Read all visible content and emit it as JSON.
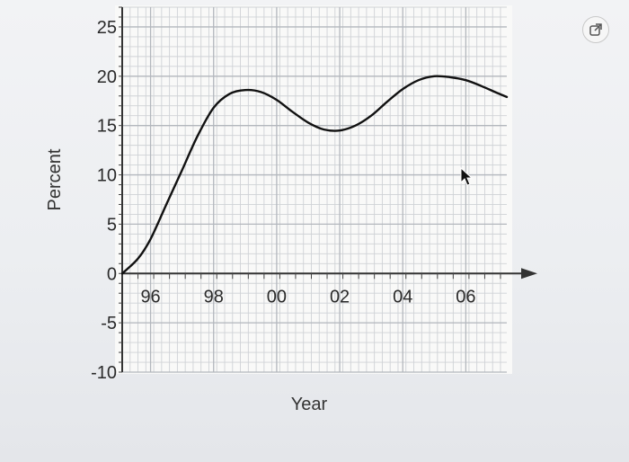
{
  "chart_data": {
    "type": "line",
    "xlabel": "Year",
    "ylabel": "Percent",
    "x_tick_values": [
      1996,
      1998,
      2000,
      2002,
      2004,
      2006
    ],
    "x_tick_labels": [
      "96",
      "98",
      "00",
      "02",
      "04",
      "06"
    ],
    "y_tick_values": [
      25,
      20,
      15,
      10,
      5,
      0,
      -5,
      -10
    ],
    "y_tick_labels": [
      "25",
      "20",
      "15",
      "10",
      "5",
      "0",
      "-5",
      "-10"
    ],
    "xlim": [
      1995.1,
      2007.3
    ],
    "ylim": [
      -10,
      27
    ],
    "grid": true,
    "series": [
      {
        "x": [
          1995.1,
          1995.6,
          1996.0,
          1996.5,
          1997.0,
          1997.5,
          1998.0,
          1998.5,
          1999.0,
          1999.5,
          2000.0,
          2000.5,
          2001.0,
          2001.5,
          2002.0,
          2002.5,
          2003.0,
          2003.5,
          2004.0,
          2004.5,
          2005.0,
          2005.5,
          2006.0,
          2006.5,
          2007.0,
          2007.3
        ],
        "y": [
          0,
          1.5,
          3.5,
          7,
          10.5,
          14,
          16.8,
          18.2,
          18.6,
          18.4,
          17.6,
          16.4,
          15.3,
          14.6,
          14.5,
          15.0,
          16.0,
          17.4,
          18.7,
          19.6,
          20.0,
          19.9,
          19.6,
          19.0,
          18.3,
          17.9
        ]
      }
    ]
  },
  "ui": {
    "popout_icon": "external-link-icon",
    "cursor_icon": "mouse-pointer-icon"
  }
}
